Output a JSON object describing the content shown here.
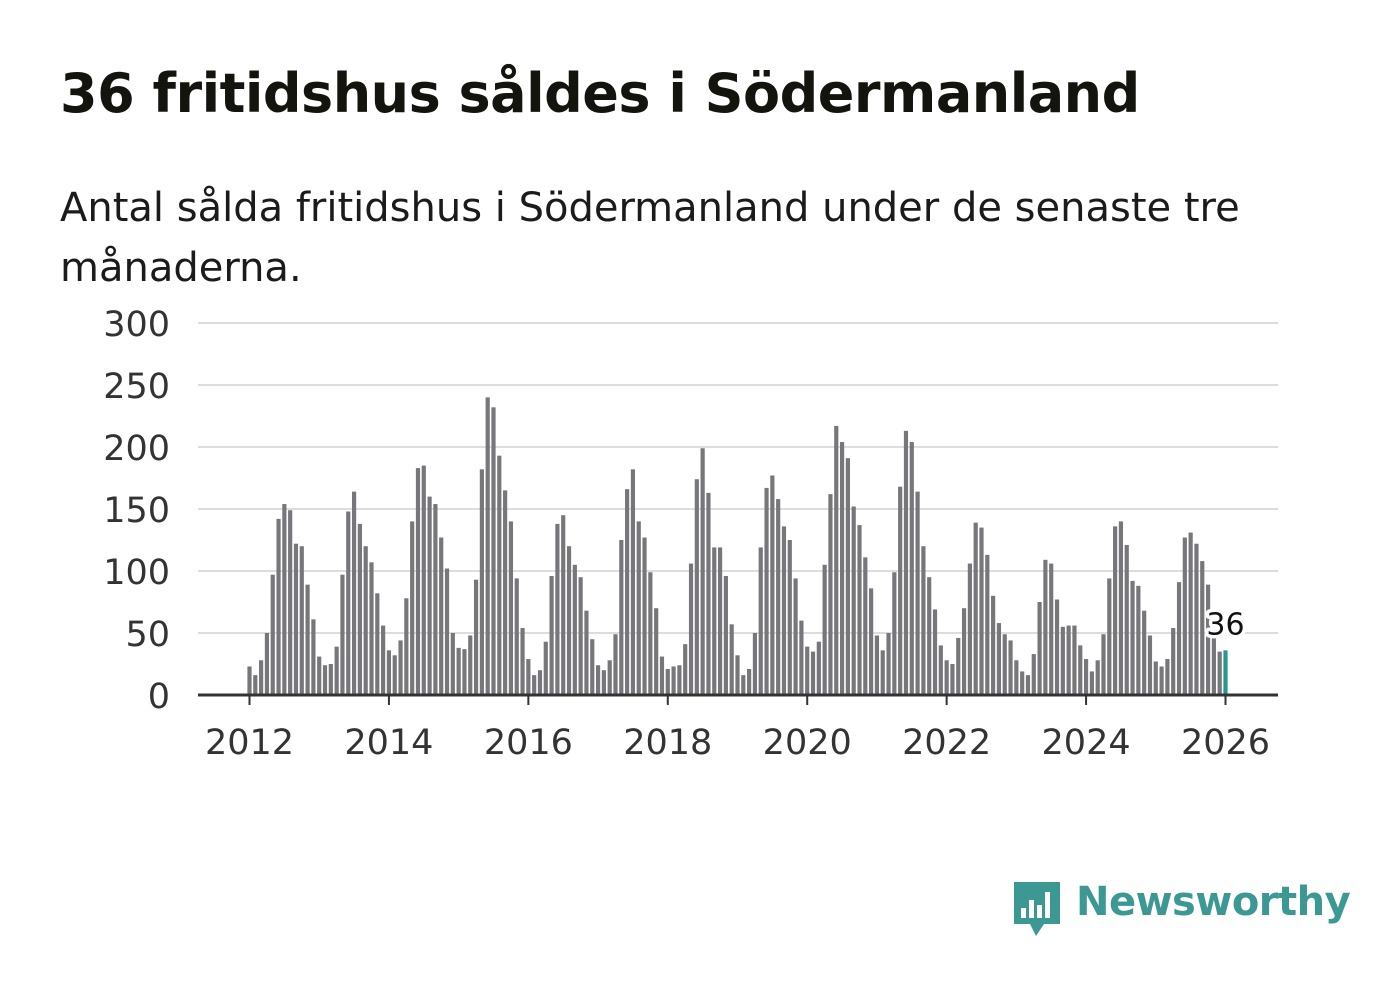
{
  "header": {
    "title": "36 fritidshus såldes i Södermanland",
    "subtitle": "Antal sålda fritidshus i Södermanland under de senaste tre månaderna."
  },
  "brand": {
    "name": "Newsworthy",
    "color": "#3b9893"
  },
  "colors": {
    "bar": "#77767a",
    "highlight": "#26968f",
    "grid": "#dddddd",
    "axis": "#333333"
  },
  "chart_data": {
    "type": "bar",
    "title": "36 fritidshus såldes i Södermanland",
    "xlabel": "",
    "ylabel": "",
    "ylim": [
      0,
      300
    ],
    "yticks": [
      0,
      50,
      100,
      150,
      200,
      250,
      300
    ],
    "xticks": [
      2012,
      2014,
      2016,
      2018,
      2020,
      2022,
      2024,
      2026
    ],
    "x_start": "2012-01",
    "x_end": "2026-01",
    "grid": true,
    "highlight_label": "36",
    "values": [
      23,
      16,
      28,
      50,
      97,
      142,
      154,
      149,
      122,
      120,
      89,
      61,
      31,
      24,
      25,
      39,
      97,
      148,
      164,
      138,
      120,
      107,
      82,
      56,
      36,
      32,
      44,
      78,
      140,
      183,
      185,
      160,
      154,
      127,
      102,
      50,
      38,
      37,
      48,
      93,
      182,
      240,
      232,
      193,
      165,
      140,
      94,
      54,
      29,
      16,
      20,
      43,
      96,
      138,
      145,
      120,
      105,
      95,
      68,
      45,
      24,
      20,
      28,
      49,
      125,
      166,
      182,
      140,
      127,
      99,
      70,
      31,
      21,
      23,
      24,
      41,
      106,
      174,
      199,
      163,
      119,
      119,
      96,
      57,
      32,
      16,
      21,
      50,
      119,
      167,
      177,
      158,
      136,
      125,
      94,
      60,
      39,
      35,
      43,
      105,
      162,
      217,
      204,
      191,
      152,
      137,
      111,
      86,
      48,
      36,
      50,
      99,
      168,
      213,
      204,
      164,
      120,
      95,
      69,
      40,
      28,
      25,
      46,
      70,
      106,
      139,
      135,
      113,
      80,
      58,
      49,
      44,
      28,
      19,
      16,
      33,
      75,
      109,
      106,
      77,
      55,
      56,
      56,
      40,
      29,
      19,
      28,
      49,
      94,
      136,
      140,
      121,
      92,
      88,
      68,
      48,
      27,
      23,
      29,
      54,
      91,
      127,
      131,
      122,
      108,
      89,
      47,
      35,
      36
    ]
  }
}
